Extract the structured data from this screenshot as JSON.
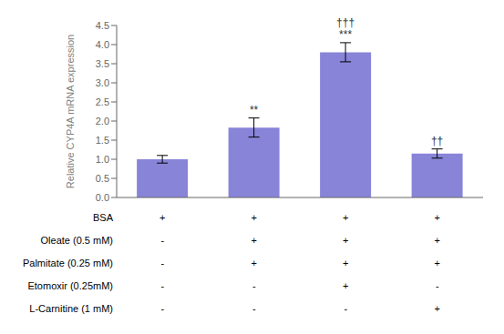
{
  "chart_data": {
    "type": "bar",
    "ylabel": "Relative CYP4A mRNA expression",
    "categories": [
      null,
      null,
      null,
      null
    ],
    "values": [
      1.0,
      1.83,
      3.8,
      1.15
    ],
    "errors": [
      0.1,
      0.25,
      0.25,
      0.12
    ],
    "color": "#8884d8",
    "ylim": [
      0,
      4.5
    ],
    "yticks": [
      {
        "value": 0,
        "label": "0.0"
      },
      0.5,
      {
        "value": 1.0,
        "label": "1.0"
      },
      1.5,
      {
        "value": 2.0,
        "label": "2.0"
      },
      2.5,
      {
        "value": 3.0,
        "label": "3.0"
      },
      3.5,
      {
        "value": 4.0,
        "label": "4.0"
      },
      4.5
    ],
    "tick_labels": "y",
    "annotations": [
      [],
      [
        "**"
      ],
      [
        "***",
        "†††"
      ],
      [
        "††"
      ]
    ],
    "table": {
      "rows": [
        "BSA",
        "Oleate (0.5 mM)",
        "Palmitate (0.25 mM)",
        "Etomoxir (0.25mM)",
        "L-Carnitine (1 mM)"
      ],
      "cells": [
        [
          "+",
          "+",
          "+",
          "+"
        ],
        [
          "-",
          "+",
          "+",
          "+"
        ],
        [
          "-",
          "+",
          "+",
          "+"
        ],
        [
          "-",
          "-",
          "+",
          "-"
        ],
        [
          "-",
          "-",
          "-",
          "+"
        ]
      ]
    }
  }
}
